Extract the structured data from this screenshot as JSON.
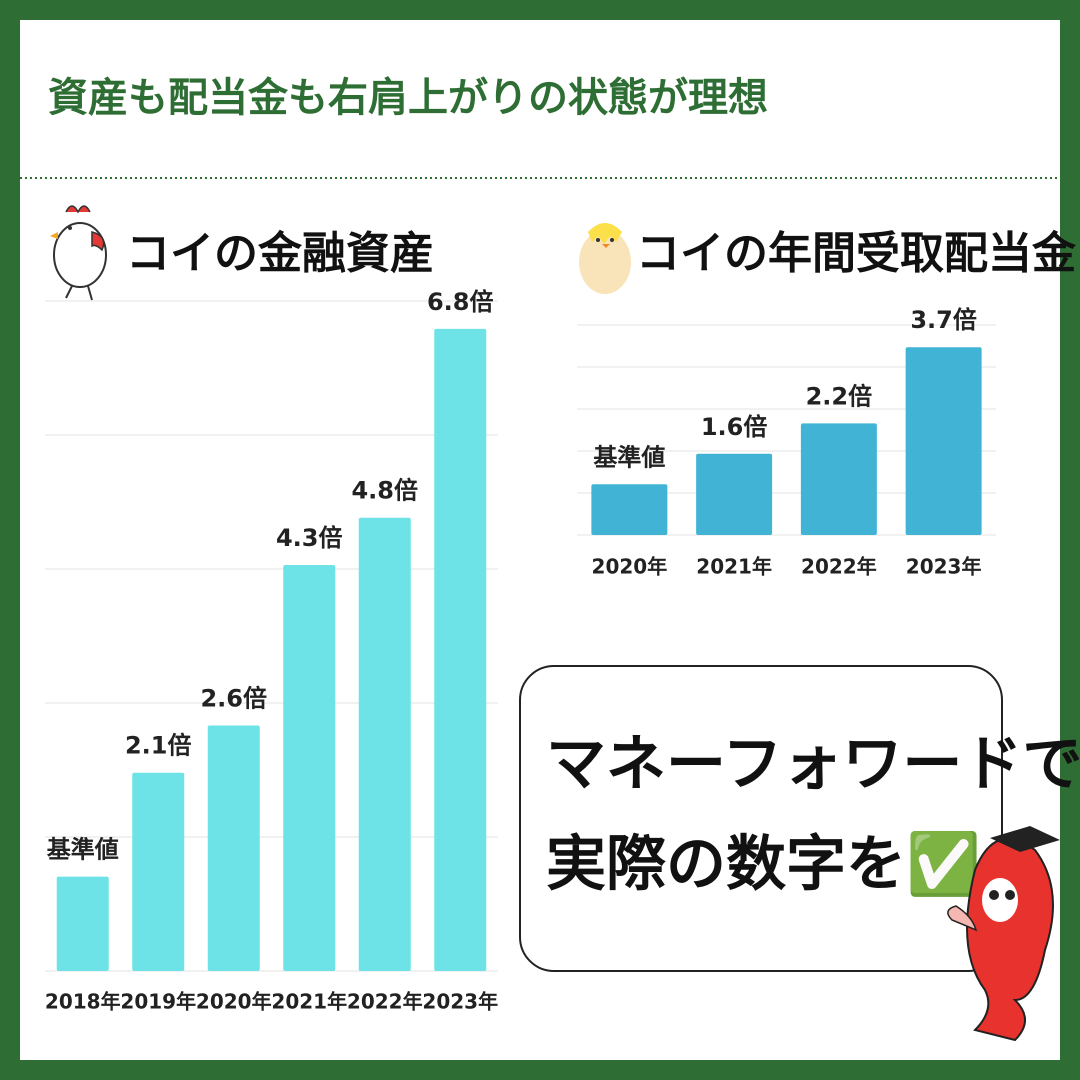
{
  "title": "資産も配当金も右肩上がりの状態が理想",
  "chart_data": [
    {
      "type": "bar",
      "title": "コイの金融資産",
      "categories": [
        "2018年",
        "2019年",
        "2020年",
        "2021年",
        "2022年",
        "2023年"
      ],
      "values": [
        1,
        2.1,
        2.6,
        4.3,
        4.8,
        6.8
      ],
      "value_labels": [
        "基準値",
        "2.1倍",
        "2.6倍",
        "4.3倍",
        "4.8倍",
        "6.8倍"
      ],
      "color": "#6de3e8",
      "ylim": [
        0,
        7
      ],
      "grid": true
    },
    {
      "type": "bar",
      "title": "コイの年間受取配当金",
      "categories": [
        "2020年",
        "2021年",
        "2022年",
        "2023年"
      ],
      "values": [
        1,
        1.6,
        2.2,
        3.7
      ],
      "value_labels": [
        "基準値",
        "1.6倍",
        "2.2倍",
        "3.7倍"
      ],
      "color": "#41b4d6",
      "ylim": [
        0,
        4
      ],
      "grid": true
    }
  ],
  "callout": {
    "lines": [
      "マネーフォワードで",
      "実際の数字を✅"
    ]
  }
}
